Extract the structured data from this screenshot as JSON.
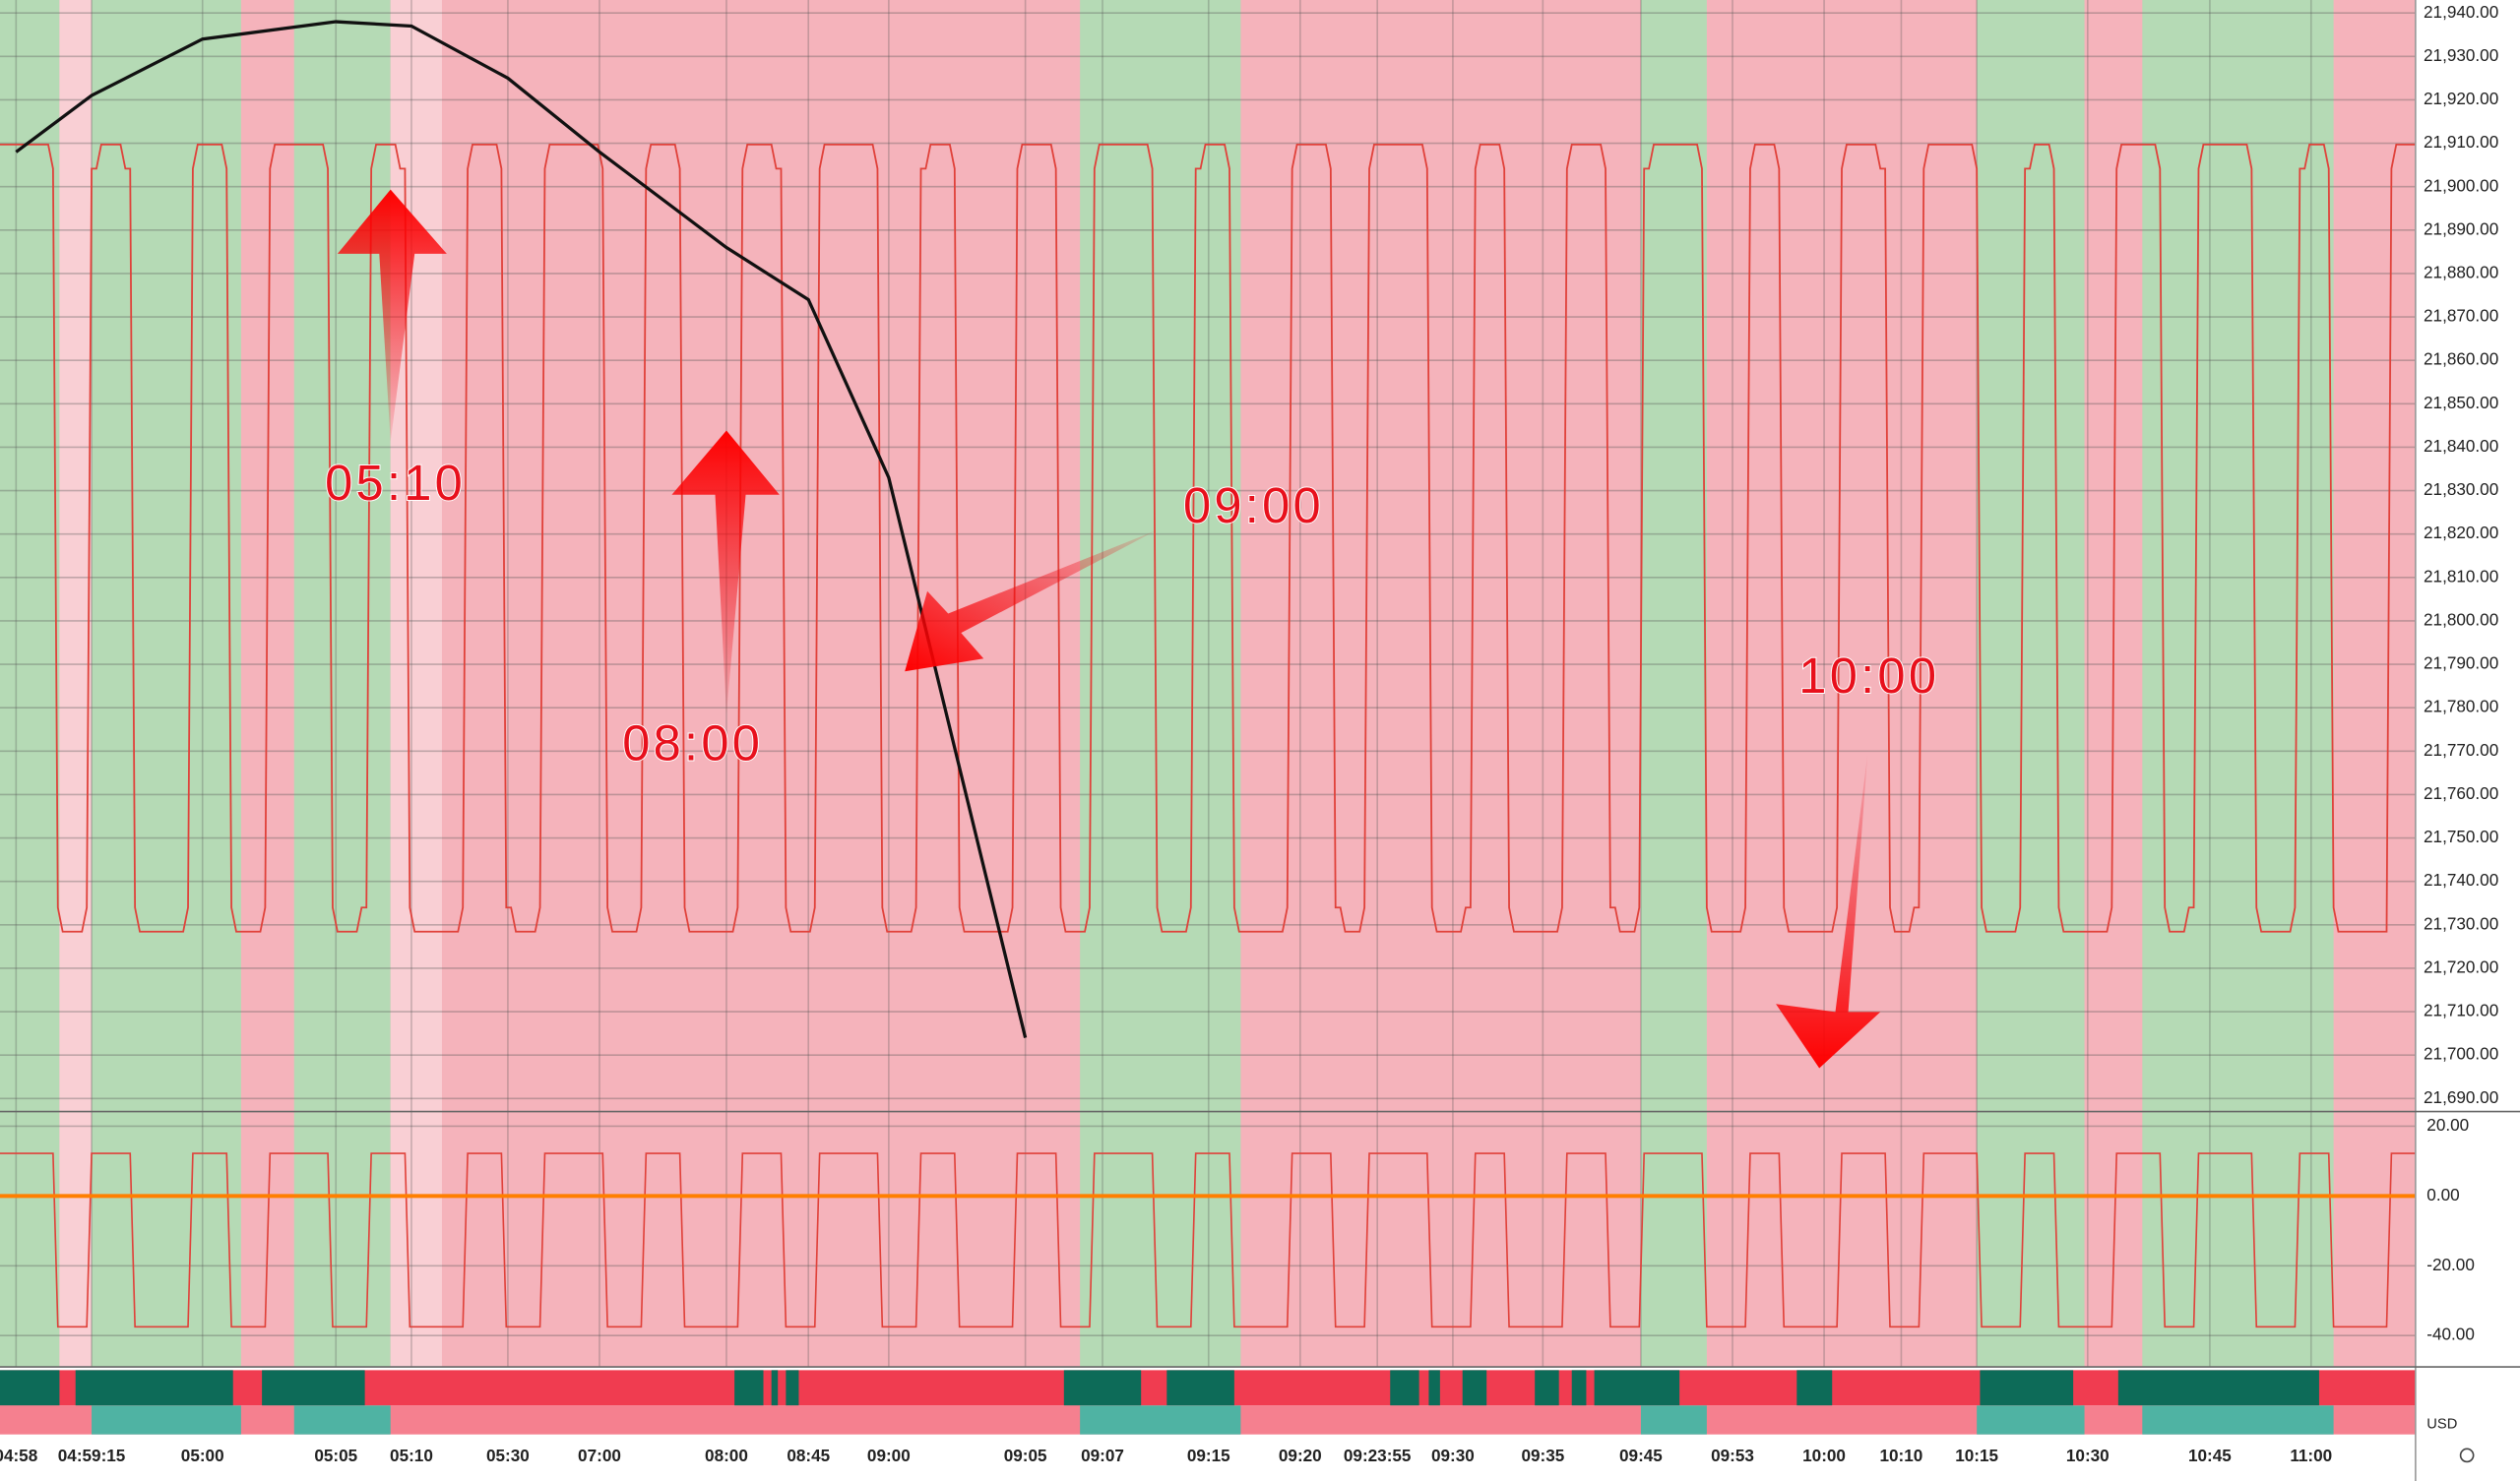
{
  "chart_data": {
    "type": "line",
    "categories": [
      "04:58",
      "04:59:15",
      "05:00",
      "05:05",
      "05:10",
      "05:30",
      "07:00",
      "08:00",
      "08:45",
      "09:00",
      "09:05",
      "09:07",
      "09:15",
      "09:20",
      "09:23:55",
      "09:30",
      "09:35",
      "09:45",
      "09:53",
      "10:00",
      "10:10",
      "10:15",
      "10:30",
      "10:45",
      "11:00"
    ],
    "series": [
      {
        "color": "#111111",
        "values": [
          21908,
          21921,
          21934,
          21938,
          21937,
          21925,
          21908,
          21886,
          21874,
          21833,
          21704,
          null,
          null,
          null,
          null,
          null,
          null,
          null,
          null,
          null,
          null,
          null,
          null,
          null,
          null
        ]
      }
    ],
    "ylim": [
      21687,
      21943
    ],
    "yticks": [
      {
        "value": 21940,
        "label": "21,940.00"
      },
      {
        "value": 21930,
        "label": "21,930.00"
      },
      {
        "value": 21920,
        "label": "21,920.00"
      },
      {
        "value": 21910,
        "label": "21,910.00"
      },
      {
        "value": 21900,
        "label": "21,900.00"
      },
      {
        "value": 21890,
        "label": "21,890.00"
      },
      {
        "value": 21880,
        "label": "21,880.00"
      },
      {
        "value": 21870,
        "label": "21,870.00"
      },
      {
        "value": 21860,
        "label": "21,860.00"
      },
      {
        "value": 21850,
        "label": "21,850.00"
      },
      {
        "value": 21840,
        "label": "21,840.00"
      },
      {
        "value": 21830,
        "label": "21,830.00"
      },
      {
        "value": 21820,
        "label": "21,820.00"
      },
      {
        "value": 21810,
        "label": "21,810.00"
      },
      {
        "value": 21800,
        "label": "21,800.00"
      },
      {
        "value": 21790,
        "label": "21,790.00"
      },
      {
        "value": 21780,
        "label": "21,780.00"
      },
      {
        "value": 21770,
        "label": "21,770.00"
      },
      {
        "value": 21760,
        "label": "21,760.00"
      },
      {
        "value": 21750,
        "label": "21,750.00"
      },
      {
        "value": 21740,
        "label": "21,740.00"
      },
      {
        "value": 21730,
        "label": "21,730.00"
      },
      {
        "value": 21720,
        "label": "21,720.00"
      },
      {
        "value": 21710,
        "label": "21,710.00"
      },
      {
        "value": 21700,
        "label": "21,700.00"
      },
      {
        "value": 21690,
        "label": "21,690.00"
      }
    ],
    "y2lim": [
      -49,
      24.2
    ],
    "y2ticks": [
      {
        "value": 20,
        "label": "20.00"
      },
      {
        "value": 0,
        "label": "0.00"
      },
      {
        "value": -20,
        "label": "-20.00"
      },
      {
        "value": -40,
        "label": "-40.00"
      }
    ],
    "grid": true,
    "annotations": [
      "05:10",
      "08:00",
      "09:00",
      "10:00"
    ],
    "currency": "USD"
  }
}
